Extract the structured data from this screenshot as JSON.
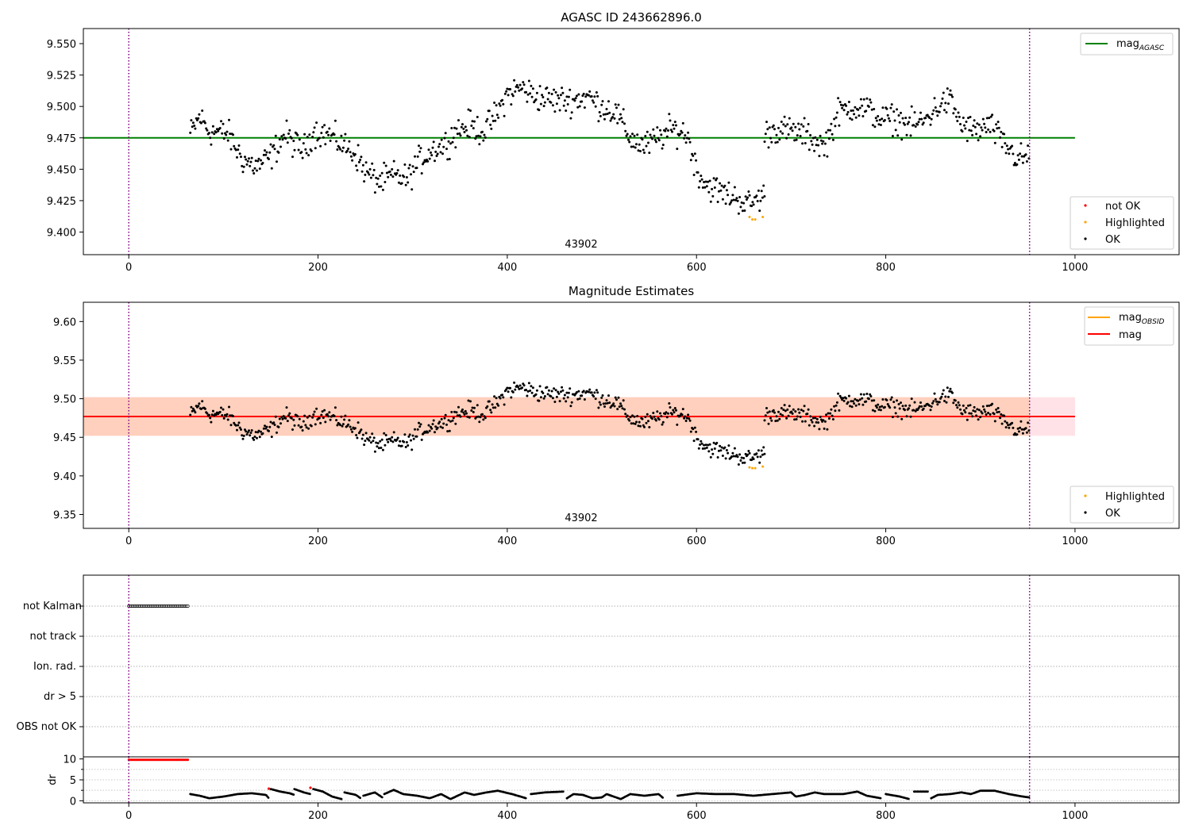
{
  "chart_data": [
    {
      "type": "scatter",
      "title": "AGASC ID 243662896.0",
      "xlim": [
        -48,
        1110
      ],
      "ylim": [
        9.382,
        9.562
      ],
      "xticks": [
        0,
        200,
        400,
        600,
        800,
        1000
      ],
      "yticks": [
        "9.400",
        "9.425",
        "9.450",
        "9.475",
        "9.500",
        "9.525",
        "9.550"
      ],
      "annotation": "43902",
      "vlines": [
        0,
        952
      ],
      "hline": {
        "y": 9.475,
        "color": "#008000",
        "xrange": [
          -48,
          1000
        ]
      },
      "legend_lines": [
        {
          "base": "mag",
          "sub": "AGASC",
          "color": "#008000"
        }
      ],
      "legend_points": [
        {
          "label": "not OK",
          "color": "#ff0000"
        },
        {
          "label": "Highlighted",
          "color": "#ffa500"
        },
        {
          "label": "OK",
          "color": "#000000"
        }
      ],
      "ok_segments": [
        [
          [
            65,
            9.478
          ],
          [
            75,
            9.492
          ],
          [
            85,
            9.48
          ],
          [
            95,
            9.48
          ],
          [
            105,
            9.478
          ],
          [
            120,
            9.458
          ],
          [
            135,
            9.452
          ],
          [
            150,
            9.46
          ],
          [
            165,
            9.478
          ],
          [
            175,
            9.47
          ],
          [
            185,
            9.465
          ],
          [
            195,
            9.48
          ],
          [
            210,
            9.478
          ],
          [
            225,
            9.47
          ],
          [
            240,
            9.462
          ],
          [
            250,
            9.448
          ],
          [
            265,
            9.44
          ],
          [
            280,
            9.445
          ],
          [
            295,
            9.442
          ],
          [
            305,
            9.455
          ],
          [
            320,
            9.465
          ],
          [
            335,
            9.47
          ],
          [
            345,
            9.48
          ],
          [
            360,
            9.485
          ],
          [
            375,
            9.48
          ],
          [
            390,
            9.495
          ],
          [
            400,
            9.51
          ],
          [
            415,
            9.515
          ],
          [
            430,
            9.508
          ],
          [
            450,
            9.505
          ],
          [
            470,
            9.505
          ],
          [
            485,
            9.508
          ],
          [
            500,
            9.5
          ],
          [
            515,
            9.495
          ],
          [
            530,
            9.475
          ],
          [
            545,
            9.468
          ],
          [
            560,
            9.475
          ],
          [
            575,
            9.482
          ],
          [
            590,
            9.478
          ],
          [
            600,
            9.45
          ],
          [
            610,
            9.438
          ],
          [
            625,
            9.432
          ],
          [
            640,
            9.428
          ],
          [
            655,
            9.422
          ],
          [
            672,
            9.43
          ]
        ],
        [
          [
            672,
            9.478
          ],
          [
            685,
            9.482
          ],
          [
            700,
            9.48
          ],
          [
            715,
            9.478
          ],
          [
            735,
            9.468
          ],
          [
            750,
            9.495
          ],
          [
            765,
            9.5
          ],
          [
            780,
            9.498
          ],
          [
            795,
            9.49
          ],
          [
            810,
            9.49
          ],
          [
            825,
            9.485
          ],
          [
            840,
            9.488
          ],
          [
            855,
            9.5
          ],
          [
            868,
            9.505
          ],
          [
            880,
            9.485
          ],
          [
            895,
            9.48
          ],
          [
            910,
            9.485
          ],
          [
            925,
            9.47
          ],
          [
            940,
            9.458
          ],
          [
            952,
            9.46
          ]
        ]
      ],
      "highlighted_points": [
        [
          656,
          9.412
        ],
        [
          659,
          9.41
        ],
        [
          662,
          9.41
        ],
        [
          670,
          9.412
        ]
      ],
      "scatter_spread": 0.012
    },
    {
      "type": "scatter",
      "title": "Magnitude Estimates",
      "xlim": [
        -48,
        1110
      ],
      "ylim": [
        9.332,
        9.625
      ],
      "xticks": [
        0,
        200,
        400,
        600,
        800,
        1000
      ],
      "yticks": [
        "9.35",
        "9.40",
        "9.45",
        "9.50",
        "9.55",
        "9.60"
      ],
      "annotation": "43902",
      "vlines": [
        0,
        952
      ],
      "bands": [
        {
          "y0": 9.452,
          "y1": 9.502,
          "x0": -48,
          "x1": 1000,
          "color": "#ff9fb0",
          "opacity": 0.3
        },
        {
          "y0": 9.452,
          "y1": 9.502,
          "x0": -48,
          "x1": 952,
          "color": "#ffb070",
          "opacity": 0.35
        }
      ],
      "hlines": [
        {
          "y": 9.477,
          "color": "#ffa500",
          "xrange": [
            -48,
            952
          ]
        },
        {
          "y": 9.477,
          "color": "#ff0000",
          "xrange": [
            -48,
            1000
          ]
        }
      ],
      "legend_lines": [
        {
          "base": "mag",
          "sub": "OBSID",
          "color": "#ffa500"
        },
        {
          "base": "mag",
          "sub": "",
          "color": "#ff0000"
        }
      ],
      "legend_points": [
        {
          "label": "Highlighted",
          "color": "#ffa500"
        },
        {
          "label": "OK",
          "color": "#000000"
        }
      ],
      "highlighted_points": [
        [
          656,
          9.411
        ],
        [
          659,
          9.41
        ],
        [
          662,
          9.41
        ],
        [
          670,
          9.412
        ]
      ]
    },
    {
      "type": "scatter",
      "xlim": [
        -48,
        1110
      ],
      "xticks": [
        0,
        200,
        400,
        600,
        800,
        1000
      ],
      "vlines": [
        0,
        952
      ],
      "flag_labels": [
        "not Kalman",
        "not track",
        "Ion. rad.",
        "dr > 5",
        "OBS not OK"
      ],
      "not_kalman_xrange": [
        0,
        63
      ],
      "dr_panel": {
        "ylabel": "dr",
        "ylim": [
          -0.5,
          10.5
        ],
        "yticks": [
          "0",
          "5",
          "10"
        ],
        "red_line": {
          "x0": 0,
          "x1": 63,
          "y": 9.8
        },
        "red_points": [
          [
            148,
            2.9
          ],
          [
            192,
            3.1
          ]
        ],
        "segments": [
          [
            [
              65,
              1.6
            ],
            [
              75,
              1.2
            ],
            [
              85,
              0.6
            ],
            [
              100,
              1.0
            ],
            [
              115,
              1.6
            ],
            [
              130,
              1.8
            ],
            [
              145,
              1.4
            ],
            [
              148,
              0.6
            ]
          ],
          [
            [
              150,
              2.8
            ],
            [
              160,
              2.2
            ],
            [
              170,
              1.8
            ],
            [
              175,
              1.4
            ]
          ],
          [
            [
              175,
              2.8
            ],
            [
              185,
              2.0
            ],
            [
              192,
              1.6
            ]
          ],
          [
            [
              195,
              2.8
            ],
            [
              205,
              2.2
            ],
            [
              215,
              1.0
            ],
            [
              225,
              0.4
            ]
          ],
          [
            [
              228,
              2.0
            ],
            [
              240,
              1.4
            ],
            [
              245,
              0.6
            ]
          ],
          [
            [
              248,
              1.2
            ],
            [
              260,
              2.0
            ],
            [
              268,
              0.8
            ]
          ],
          [
            [
              270,
              1.6
            ],
            [
              280,
              2.6
            ],
            [
              290,
              1.6
            ],
            [
              305,
              1.2
            ],
            [
              318,
              0.6
            ],
            [
              330,
              1.6
            ],
            [
              340,
              0.4
            ],
            [
              355,
              2.0
            ],
            [
              365,
              1.4
            ],
            [
              378,
              2.0
            ],
            [
              390,
              2.4
            ],
            [
              405,
              1.6
            ],
            [
              420,
              0.6
            ]
          ],
          [
            [
              425,
              1.6
            ],
            [
              440,
              2.0
            ],
            [
              460,
              2.2
            ]
          ],
          [
            [
              463,
              0.6
            ],
            [
              470,
              1.6
            ],
            [
              480,
              1.4
            ],
            [
              490,
              0.6
            ],
            [
              500,
              0.8
            ],
            [
              505,
              1.6
            ],
            [
              520,
              0.4
            ],
            [
              530,
              1.6
            ],
            [
              545,
              1.2
            ],
            [
              560,
              1.6
            ],
            [
              565,
              0.6
            ]
          ],
          [
            [
              580,
              1.2
            ],
            [
              600,
              1.8
            ],
            [
              620,
              1.6
            ],
            [
              640,
              1.6
            ],
            [
              660,
              1.2
            ],
            [
              680,
              1.6
            ],
            [
              700,
              2.0
            ],
            [
              705,
              1.0
            ],
            [
              715,
              1.4
            ],
            [
              725,
              2.0
            ],
            [
              735,
              1.6
            ],
            [
              745,
              1.6
            ],
            [
              755,
              1.6
            ],
            [
              770,
              2.2
            ],
            [
              780,
              1.2
            ],
            [
              795,
              0.6
            ]
          ],
          [
            [
              800,
              1.6
            ],
            [
              815,
              1.0
            ],
            [
              825,
              0.4
            ]
          ],
          [
            [
              830,
              2.2
            ],
            [
              845,
              2.2
            ]
          ],
          [
            [
              848,
              0.6
            ],
            [
              855,
              1.4
            ],
            [
              868,
              1.6
            ],
            [
              880,
              2.0
            ],
            [
              890,
              1.6
            ],
            [
              900,
              2.4
            ],
            [
              915,
              2.4
            ],
            [
              930,
              1.6
            ],
            [
              945,
              1.0
            ],
            [
              952,
              0.8
            ]
          ]
        ]
      }
    }
  ]
}
